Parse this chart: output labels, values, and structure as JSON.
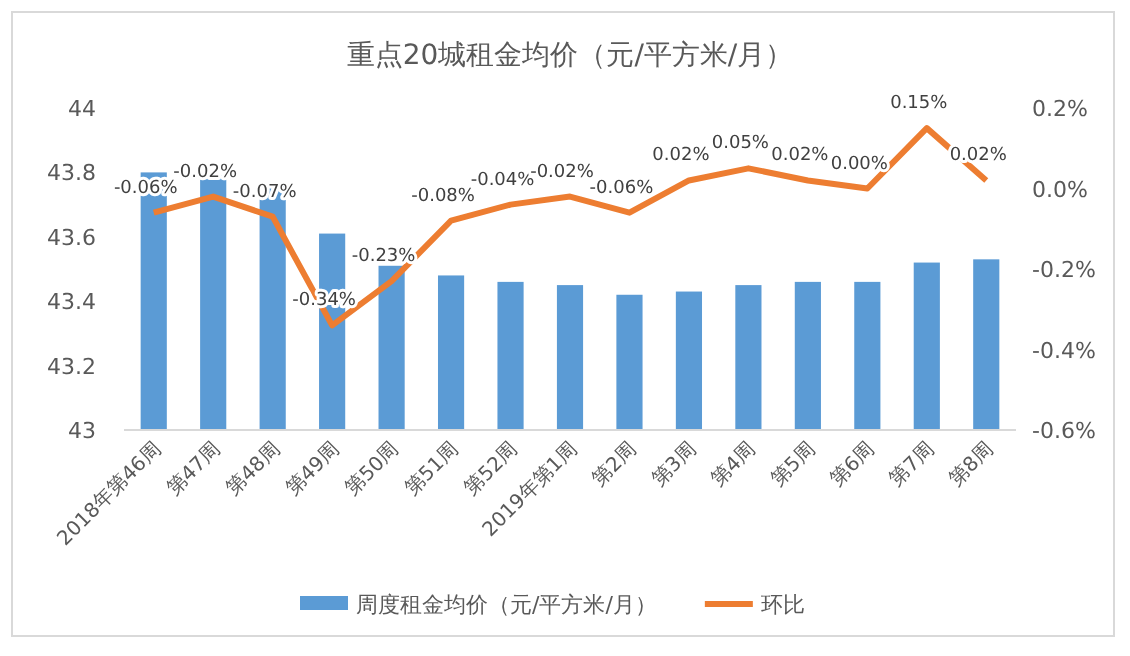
{
  "chart_data": {
    "type": "bar",
    "title": "重点20城租金均价（元/平方米/月）",
    "categories": [
      "2018年第46周",
      "第47周",
      "第48周",
      "第49周",
      "第50周",
      "第51周",
      "第52周",
      "2019年第1周",
      "第2周",
      "第3周",
      "第4周",
      "第5周",
      "第6周",
      "第7周",
      "第8周"
    ],
    "series": [
      {
        "name": "周度租金均价（元/平方米/月）",
        "color": "#5b9bd5",
        "values": [
          43.8,
          43.79,
          43.76,
          43.61,
          43.51,
          43.48,
          43.46,
          43.45,
          43.42,
          43.43,
          43.45,
          43.46,
          43.46,
          43.52,
          43.53
        ]
      },
      {
        "name": "环比",
        "type": "line",
        "axis": "y2",
        "color": "#ed7d31",
        "values": [
          -0.06,
          -0.02,
          -0.07,
          -0.34,
          -0.23,
          -0.08,
          -0.04,
          -0.02,
          -0.06,
          0.02,
          0.05,
          0.02,
          0.0,
          0.15,
          0.02
        ],
        "value_labels": [
          "-0.06%",
          "-0.02%",
          "-0.07%",
          "-0.34%",
          "-0.23%",
          "-0.08%",
          "-0.04%",
          "-0.02%",
          "-0.06%",
          "0.02%",
          "0.05%",
          "0.02%",
          "0.00%",
          "0.15%",
          "0.02%"
        ]
      }
    ],
    "ylim": [
      43,
      44
    ],
    "yticks": [
      43,
      {
        "value": 43.2,
        "label": "43.2"
      },
      {
        "value": 43.4,
        "label": "43.4"
      },
      {
        "value": 43.6,
        "label": "43.6"
      },
      {
        "value": 43.8,
        "label": "43.8"
      },
      44
    ],
    "y2lim": [
      -0.6,
      0.2
    ],
    "y2ticks": [
      {
        "value": -0.6,
        "label": "-0.6%"
      },
      {
        "value": -0.4,
        "label": "-0.4%"
      },
      {
        "value": -0.2,
        "label": "-0.2%"
      },
      {
        "value": 0,
        "label": "0.0%"
      },
      {
        "value": 0.2,
        "label": "0.2%"
      }
    ],
    "grid": false,
    "legend": "bottom",
    "marker": "none"
  }
}
